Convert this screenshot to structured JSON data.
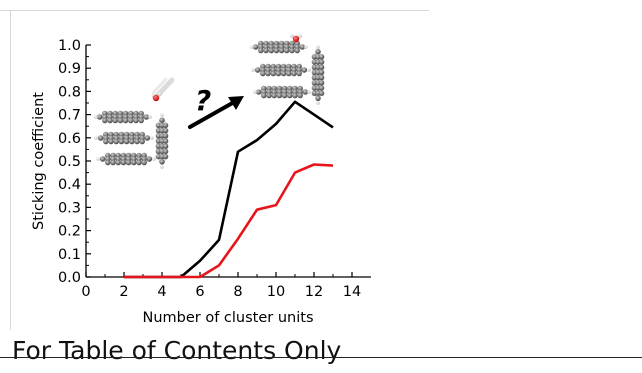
{
  "caption": "For Table of Contents Only",
  "colors": {
    "black_series": "#000000",
    "red_series": "#e8141b",
    "axis": "#000000"
  },
  "chart_data": {
    "type": "line",
    "title": "",
    "xlabel": "Number of cluster units",
    "ylabel": "Sticking coefficient",
    "xlim": [
      0,
      15
    ],
    "ylim": [
      0,
      1.0
    ],
    "x_ticks": [
      0,
      2,
      4,
      6,
      8,
      10,
      12,
      14
    ],
    "y_ticks": [
      0.0,
      0.1,
      0.2,
      0.3,
      0.4,
      0.5,
      0.6,
      0.7,
      0.8,
      0.9,
      1.0
    ],
    "x_tick_labels": [
      "0",
      "2",
      "4",
      "6",
      "8",
      "10",
      "12",
      "14"
    ],
    "y_tick_labels": [
      "0.0",
      "0.1",
      "0.2",
      "0.3",
      "0.4",
      "0.5",
      "0.6",
      "0.7",
      "0.8",
      "0.9",
      "1.0"
    ],
    "grid": false,
    "series": [
      {
        "color": "#000000",
        "x": [
          2,
          3,
          4,
          5,
          6,
          7,
          8,
          9,
          10,
          11,
          12,
          13
        ],
        "y": [
          0.0,
          0.0,
          0.0,
          0.0,
          0.07,
          0.16,
          0.54,
          0.59,
          0.66,
          0.755,
          0.7,
          0.645
        ]
      },
      {
        "color": "#e8141b",
        "x": [
          2,
          3,
          4,
          5,
          6,
          7,
          8,
          9,
          10,
          11,
          12,
          13
        ],
        "y": [
          0.0,
          0.0,
          0.0,
          0.0,
          0.0,
          0.05,
          0.165,
          0.29,
          0.31,
          0.45,
          0.485,
          0.48
        ]
      }
    ],
    "annotations": [
      {
        "text": "?",
        "kind": "question-mark"
      },
      {
        "kind": "arrow"
      }
    ]
  }
}
